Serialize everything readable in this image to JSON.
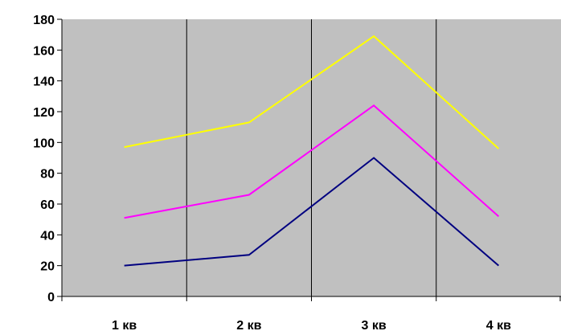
{
  "chart_data": {
    "type": "line",
    "categories": [
      "1 кв",
      "2 кв",
      "3 кв",
      "4 кв"
    ],
    "series": [
      {
        "values": [
          20,
          27,
          90,
          20
        ],
        "color": "#000080"
      },
      {
        "values": [
          51,
          66,
          124,
          52
        ],
        "color": "#ff00ff"
      },
      {
        "values": [
          97,
          113,
          169,
          96
        ],
        "color": "#ffff00"
      }
    ],
    "ylim": [
      0,
      180
    ],
    "yticks": [
      0,
      20,
      40,
      60,
      80,
      100,
      120,
      140,
      160,
      180
    ],
    "plot_background": "#c0c0c0",
    "grid": "vertical",
    "legend": "none"
  }
}
